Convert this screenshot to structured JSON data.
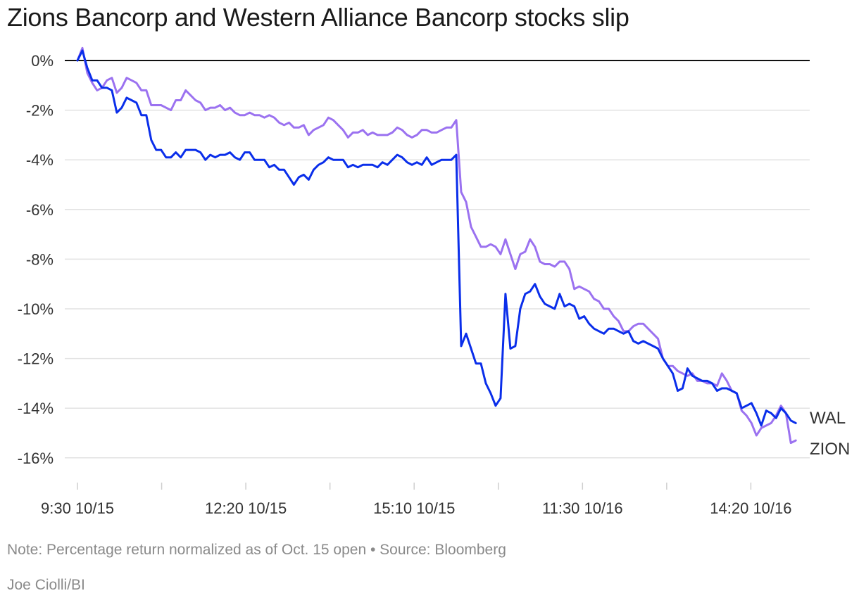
{
  "title": "Zions Bancorp and Western Alliance Bancorp stocks slip",
  "note": "Note: Percentage return normalized as of Oct. 15 open • Source: Bloomberg",
  "credit": "Joe Ciolli/BI",
  "chart_data": {
    "type": "line",
    "title": "Zions Bancorp and Western Alliance Bancorp stocks slip",
    "xlabel": "",
    "ylabel": "",
    "ylim": [
      -17,
      0.5
    ],
    "yticks": [
      0,
      -2,
      -4,
      -6,
      -8,
      -10,
      -12,
      -14,
      -16
    ],
    "ytick_labels": [
      "0%",
      "-2%",
      "-4%",
      "-6%",
      "-8%",
      "-10%",
      "-12%",
      "-14%",
      "-16%"
    ],
    "xlim": [
      0,
      128
    ],
    "xticks": [
      0,
      15,
      30,
      45,
      60,
      75,
      90,
      105,
      120
    ],
    "xtick_labels": [
      "9:30 10/15",
      "",
      "12:20 10/15",
      "",
      "15:10 10/15",
      "",
      "11:30 10/16",
      "",
      "14:20 10/16"
    ],
    "grid": true,
    "legend": "direct labels at line ends (right)",
    "colors": {
      "WAL": "#0a2eea",
      "ZION": "#9b72f0",
      "zero_line": "#111111",
      "grid": "#e2e2e2"
    },
    "series": [
      {
        "name": "WAL",
        "values": [
          0,
          0.4,
          -0.3,
          -0.8,
          -0.8,
          -1.1,
          -1.1,
          -1.2,
          -2.1,
          -1.9,
          -1.5,
          -1.6,
          -1.7,
          -2.2,
          -2.2,
          -3.2,
          -3.6,
          -3.6,
          -3.9,
          -3.9,
          -3.7,
          -3.9,
          -3.6,
          -3.6,
          -3.6,
          -3.7,
          -4.0,
          -3.8,
          -3.9,
          -3.8,
          -3.8,
          -3.7,
          -3.9,
          -4.0,
          -3.7,
          -3.7,
          -4.0,
          -4.0,
          -4.0,
          -4.3,
          -4.2,
          -4.4,
          -4.4,
          -4.7,
          -5.0,
          -4.7,
          -4.6,
          -4.8,
          -4.4,
          -4.2,
          -4.1,
          -3.9,
          -4.0,
          -4.0,
          -4.0,
          -4.3,
          -4.2,
          -4.3,
          -4.2,
          -4.2,
          -4.2,
          -4.3,
          -4.1,
          -4.2,
          -4.0,
          -3.8,
          -3.9,
          -4.1,
          -4.2,
          -4.1,
          -4.2,
          -3.9,
          -4.2,
          -4.1,
          -4.0,
          -4.0,
          -4.0,
          -3.8,
          -11.5,
          -11.0,
          -11.6,
          -12.2,
          -12.2,
          -13.0,
          -13.4,
          -13.9,
          -13.6,
          -9.4,
          -11.6,
          -11.5,
          -10.0,
          -9.4,
          -9.3,
          -9.0,
          -9.5,
          -9.8,
          -9.9,
          -10.0,
          -9.4,
          -9.9,
          -9.8,
          -9.9,
          -10.4,
          -10.3,
          -10.6,
          -10.8,
          -10.9,
          -11.0,
          -10.8,
          -10.8,
          -10.9,
          -11.0,
          -10.9,
          -11.3,
          -11.4,
          -11.3,
          -11.4,
          -11.5,
          -11.6,
          -12.0,
          -12.3,
          -12.6,
          -13.3,
          -13.2,
          -12.4,
          -12.7,
          -12.8,
          -12.9,
          -12.9,
          -13.0,
          -13.3,
          -13.2,
          -13.2,
          -13.3,
          -13.4,
          -14.0,
          -13.9,
          -13.8,
          -14.2,
          -14.7,
          -14.1,
          -14.2,
          -14.4,
          -14.0,
          -14.2,
          -14.5,
          -14.6
        ]
      },
      {
        "name": "ZION",
        "values": [
          0,
          0.5,
          -0.5,
          -0.9,
          -1.2,
          -1.1,
          -0.8,
          -0.7,
          -1.3,
          -1.1,
          -0.7,
          -0.8,
          -0.9,
          -1.2,
          -1.2,
          -1.8,
          -1.8,
          -1.8,
          -1.9,
          -2.0,
          -1.6,
          -1.6,
          -1.2,
          -1.4,
          -1.6,
          -1.7,
          -2.0,
          -1.9,
          -1.9,
          -1.8,
          -2.0,
          -1.9,
          -2.1,
          -2.2,
          -2.2,
          -2.1,
          -2.2,
          -2.2,
          -2.3,
          -2.2,
          -2.3,
          -2.5,
          -2.6,
          -2.5,
          -2.7,
          -2.7,
          -2.6,
          -3.0,
          -2.8,
          -2.7,
          -2.6,
          -2.3,
          -2.4,
          -2.6,
          -2.8,
          -3.1,
          -2.9,
          -2.9,
          -2.8,
          -3.0,
          -2.9,
          -3.0,
          -3.0,
          -3.0,
          -2.9,
          -2.7,
          -2.8,
          -3.0,
          -3.1,
          -3.0,
          -2.8,
          -2.8,
          -2.9,
          -2.9,
          -2.8,
          -2.7,
          -2.7,
          -2.4,
          -5.3,
          -5.7,
          -6.7,
          -7.1,
          -7.5,
          -7.5,
          -7.4,
          -7.5,
          -7.8,
          -7.2,
          -7.8,
          -8.4,
          -7.8,
          -7.7,
          -7.2,
          -7.5,
          -8.1,
          -8.2,
          -8.2,
          -8.3,
          -8.1,
          -8.1,
          -8.4,
          -9.2,
          -9.1,
          -9.2,
          -9.3,
          -9.6,
          -9.7,
          -10.0,
          -10.0,
          -10.3,
          -10.5,
          -10.9,
          -10.9,
          -10.7,
          -10.6,
          -10.6,
          -10.8,
          -11.0,
          -11.2,
          -12.0,
          -12.3,
          -12.3,
          -12.5,
          -12.6,
          -12.7,
          -12.6,
          -12.9,
          -12.9,
          -13.0,
          -13.0,
          -13.1,
          -12.6,
          -12.9,
          -13.3,
          -13.4,
          -14.1,
          -14.3,
          -14.6,
          -15.1,
          -14.8,
          -14.7,
          -14.6,
          -14.3,
          -13.9,
          -14.2,
          -15.4,
          -15.3
        ]
      }
    ],
    "end_labels": [
      "WAL",
      "ZION"
    ]
  }
}
